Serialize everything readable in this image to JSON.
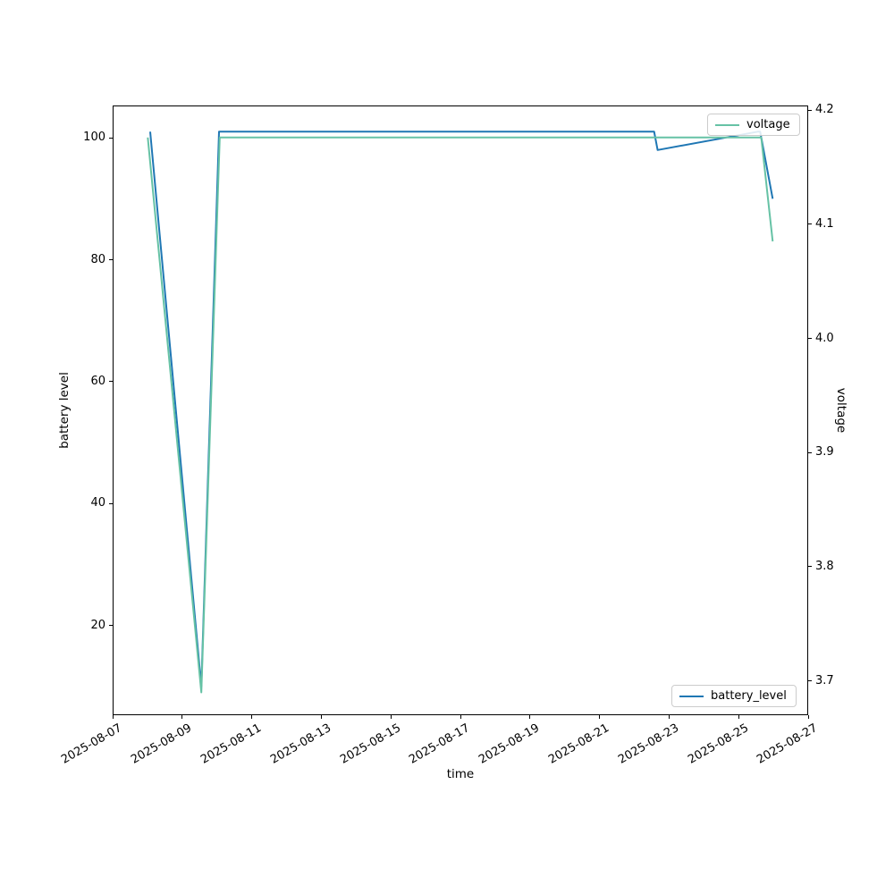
{
  "chart_data": {
    "type": "line",
    "title": "",
    "xlabel": "time",
    "ylabel_left": "battery level",
    "ylabel_right": "voltage",
    "grid": false,
    "x_axis": {
      "kind": "date",
      "xlim_days": [
        0,
        20
      ],
      "origin_date": "2025-08-07",
      "tick_days": [
        0,
        2,
        4,
        6,
        8,
        10,
        12,
        14,
        16,
        18,
        20
      ],
      "tick_labels": [
        "2025-08-07",
        "2025-08-09",
        "2025-08-11",
        "2025-08-13",
        "2025-08-15",
        "2025-08-17",
        "2025-08-19",
        "2025-08-21",
        "2025-08-23",
        "2025-08-25",
        "2025-08-27"
      ],
      "tick_rotation_deg": 30
    },
    "y_axis_left": {
      "ylim": [
        5.3,
        105.3
      ],
      "tick_values": [
        20,
        40,
        60,
        80,
        100
      ],
      "tick_labels": [
        "20",
        "40",
        "60",
        "80",
        "100"
      ]
    },
    "y_axis_right": {
      "ylim": [
        3.67,
        4.204
      ],
      "tick_values": [
        3.7,
        3.8,
        3.9,
        4.0,
        4.1,
        4.2
      ],
      "tick_labels": [
        "3.7",
        "3.8",
        "3.9",
        "4.0",
        "4.1",
        "4.2"
      ]
    },
    "series": [
      {
        "name": "battery_level",
        "axis": "left",
        "color": "#1f77b4",
        "points_days_value": [
          [
            1.08,
            101
          ],
          [
            2.55,
            10
          ],
          [
            3.06,
            101
          ],
          [
            15.57,
            101
          ],
          [
            15.67,
            98
          ],
          [
            18.55,
            101
          ],
          [
            18.62,
            101
          ],
          [
            18.98,
            90
          ]
        ]
      },
      {
        "name": "voltage",
        "axis": "right",
        "color": "#66c2a5",
        "points_days_value": [
          [
            1.01,
            4.176
          ],
          [
            2.55,
            3.69
          ],
          [
            3.08,
            4.176
          ],
          [
            18.65,
            4.176
          ],
          [
            18.98,
            4.085
          ]
        ]
      }
    ],
    "legend": {
      "voltage_label": "voltage",
      "voltage_position": "upper right",
      "battery_label": "battery_level",
      "battery_position": "lower right"
    }
  }
}
